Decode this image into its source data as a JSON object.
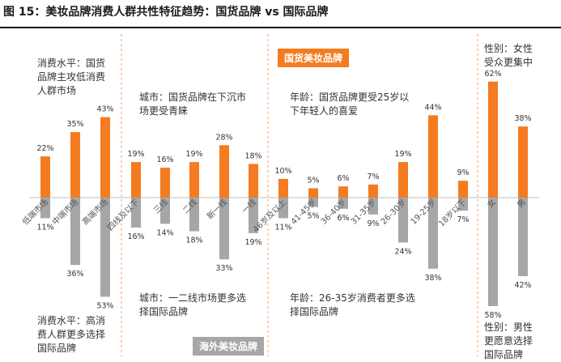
{
  "title": "图 15：美妆品牌消费人群共性特征趋势：国货品牌 vs 国际品牌",
  "badges": {
    "domestic": "国货美妆品牌",
    "international": "海外美妆品牌"
  },
  "annotations": {
    "income_top": "消费水平：国货\n品牌主攻低消费\n人群市场",
    "income_bottom": "消费水平：高消\n费人群更多选择\n国际品牌",
    "city_top": "城市：国货品牌在下沉市\n场更受青睐",
    "city_bottom": "城市：一二线市场更多选\n择国际品牌",
    "age_top": "年龄：国货品牌更受25岁以\n下年轻人的喜爱",
    "age_bottom": "年龄：26-35岁消费者更多选\n择国际品牌",
    "gender_top": "性别：女性\n受众更集中",
    "gender_bottom": "性别：男性\n更愿意选择\n国际品牌"
  },
  "colors": {
    "domestic": "#f47b20",
    "international": "#a6a6a6",
    "badge_domestic": "#f47b20",
    "badge_international": "#a6a6a6",
    "divider": "#f4a36a"
  },
  "chart_data": {
    "type": "bar",
    "value_format": "percent",
    "groups": [
      {
        "name": "消费水平",
        "categories": [
          "低端市场",
          "中端市场",
          "高端市场"
        ]
      },
      {
        "name": "城市",
        "categories": [
          "四线及以下",
          "三线",
          "二线",
          "新一线",
          "一线"
        ]
      },
      {
        "name": "年龄",
        "categories": [
          "46岁及以上",
          "41-45岁",
          "36-40岁",
          "31-35岁",
          "26-30岁",
          "19-25岁",
          "18岁以下"
        ]
      },
      {
        "name": "性别",
        "categories": [
          "女",
          "男"
        ]
      }
    ],
    "categories": [
      "低端市场",
      "中端市场",
      "高端市场",
      "四线及以下",
      "三线",
      "二线",
      "新一线",
      "一线",
      "46岁及以上",
      "41-45岁",
      "36-40岁",
      "31-35岁",
      "26-30岁",
      "19-25岁",
      "18岁以下",
      "女",
      "男"
    ],
    "series": [
      {
        "values": [
          22,
          35,
          43,
          19,
          16,
          19,
          28,
          18,
          10,
          5,
          6,
          7,
          19,
          44,
          9,
          62,
          38
        ]
      },
      {
        "values": [
          11,
          36,
          53,
          16,
          14,
          18,
          33,
          19,
          11,
          5,
          6,
          9,
          24,
          38,
          7,
          58,
          42
        ]
      }
    ]
  }
}
